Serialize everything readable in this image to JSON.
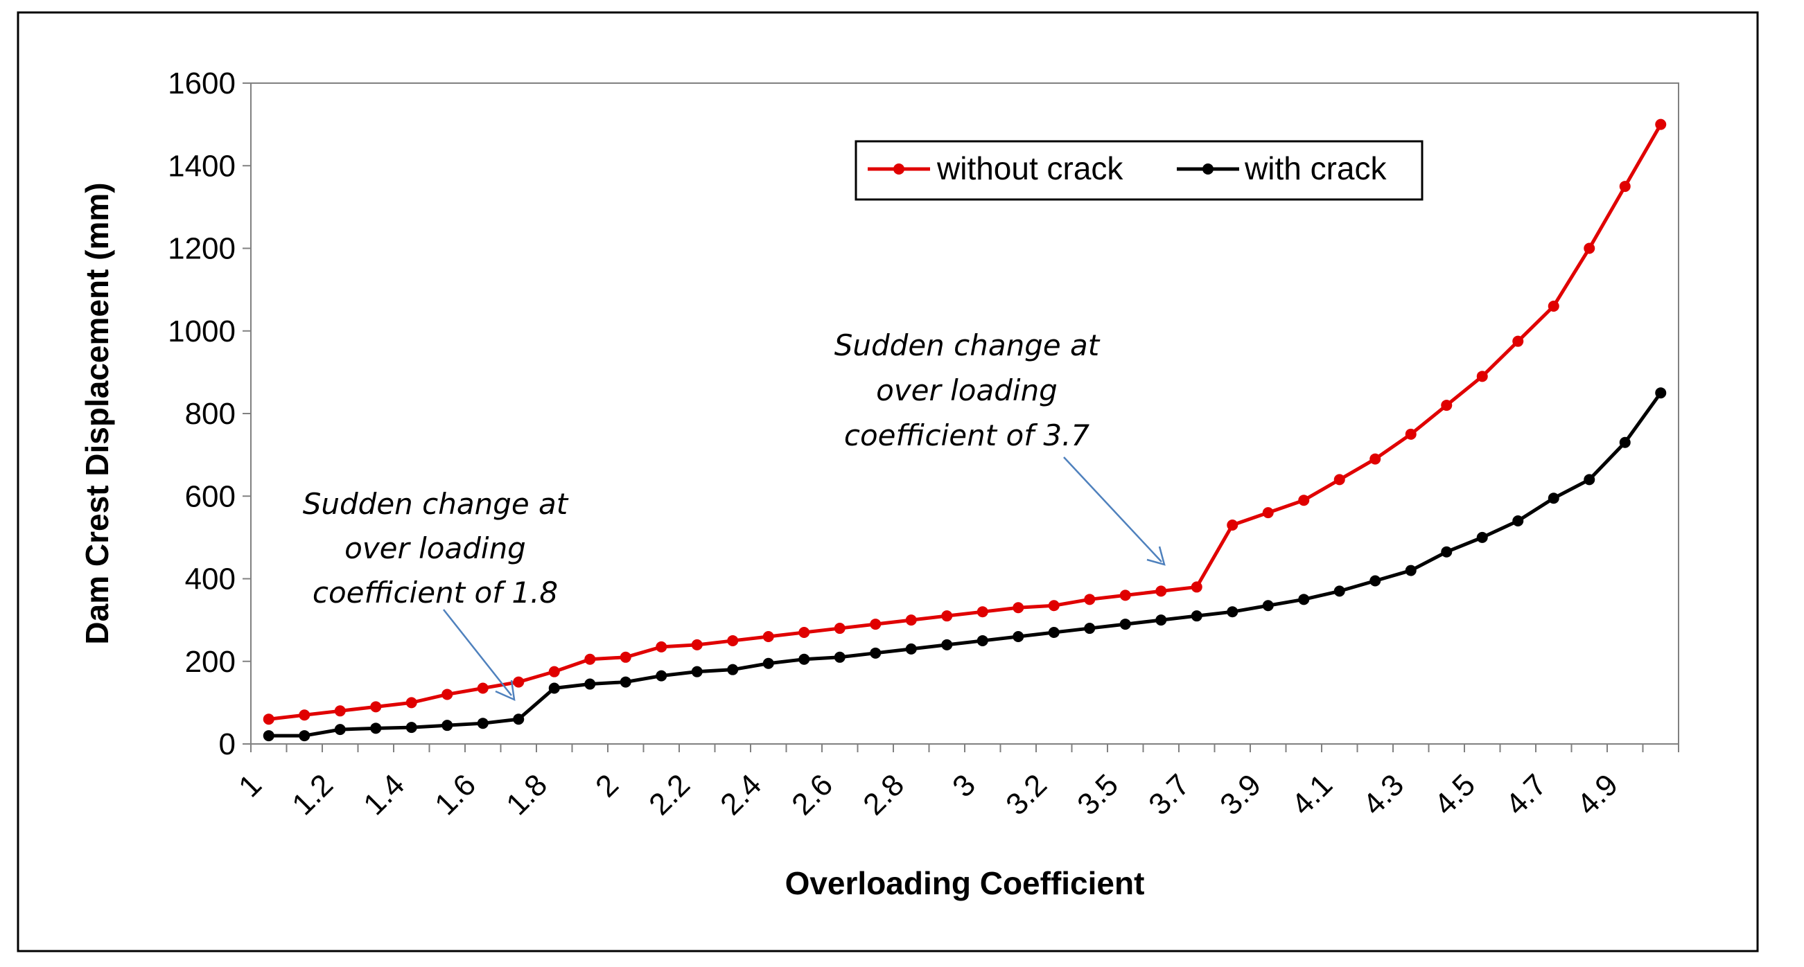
{
  "chart_data": {
    "type": "line",
    "title": "",
    "xlabel": "Overloading Coefficient",
    "ylabel": "Dam Crest Displacement (mm)",
    "ylim": [
      0,
      1600
    ],
    "yticks": [
      0,
      200,
      400,
      600,
      800,
      1000,
      1200,
      1400,
      1600
    ],
    "xtick_labels": [
      "1",
      "1.2",
      "1.4",
      "1.6",
      "1.8",
      "2",
      "2.2",
      "2.4",
      "2.6",
      "2.8",
      "3",
      "3.2",
      "3.5",
      "3.7",
      "3.9",
      "4.1",
      "4.3",
      "4.5",
      "4.7",
      "4.9"
    ],
    "legend_position": "top-right",
    "series": [
      {
        "name": "without crack",
        "color": "#e00000",
        "values": [
          60,
          70,
          80,
          90,
          100,
          120,
          135,
          150,
          175,
          205,
          210,
          235,
          240,
          250,
          260,
          270,
          280,
          290,
          300,
          310,
          320,
          330,
          335,
          350,
          360,
          370,
          380,
          530,
          560,
          590,
          640,
          690,
          750,
          820,
          890,
          975,
          1060,
          1200,
          1350,
          1500
        ]
      },
      {
        "name": "with crack",
        "color": "#000000",
        "values": [
          20,
          20,
          35,
          38,
          40,
          45,
          50,
          60,
          135,
          145,
          150,
          165,
          175,
          180,
          195,
          205,
          210,
          220,
          230,
          240,
          250,
          260,
          270,
          280,
          290,
          300,
          310,
          320,
          335,
          350,
          370,
          395,
          420,
          465,
          500,
          540,
          595,
          640,
          730,
          850
        ]
      }
    ],
    "annotations": [
      {
        "lines": [
          "Sudden change at",
          "over loading",
          "coefficient of  1.8"
        ],
        "target_index": 7
      },
      {
        "lines": [
          "Sudden change at",
          "over loading",
          "coefficient of  3.7"
        ],
        "target_index": 26
      }
    ]
  }
}
